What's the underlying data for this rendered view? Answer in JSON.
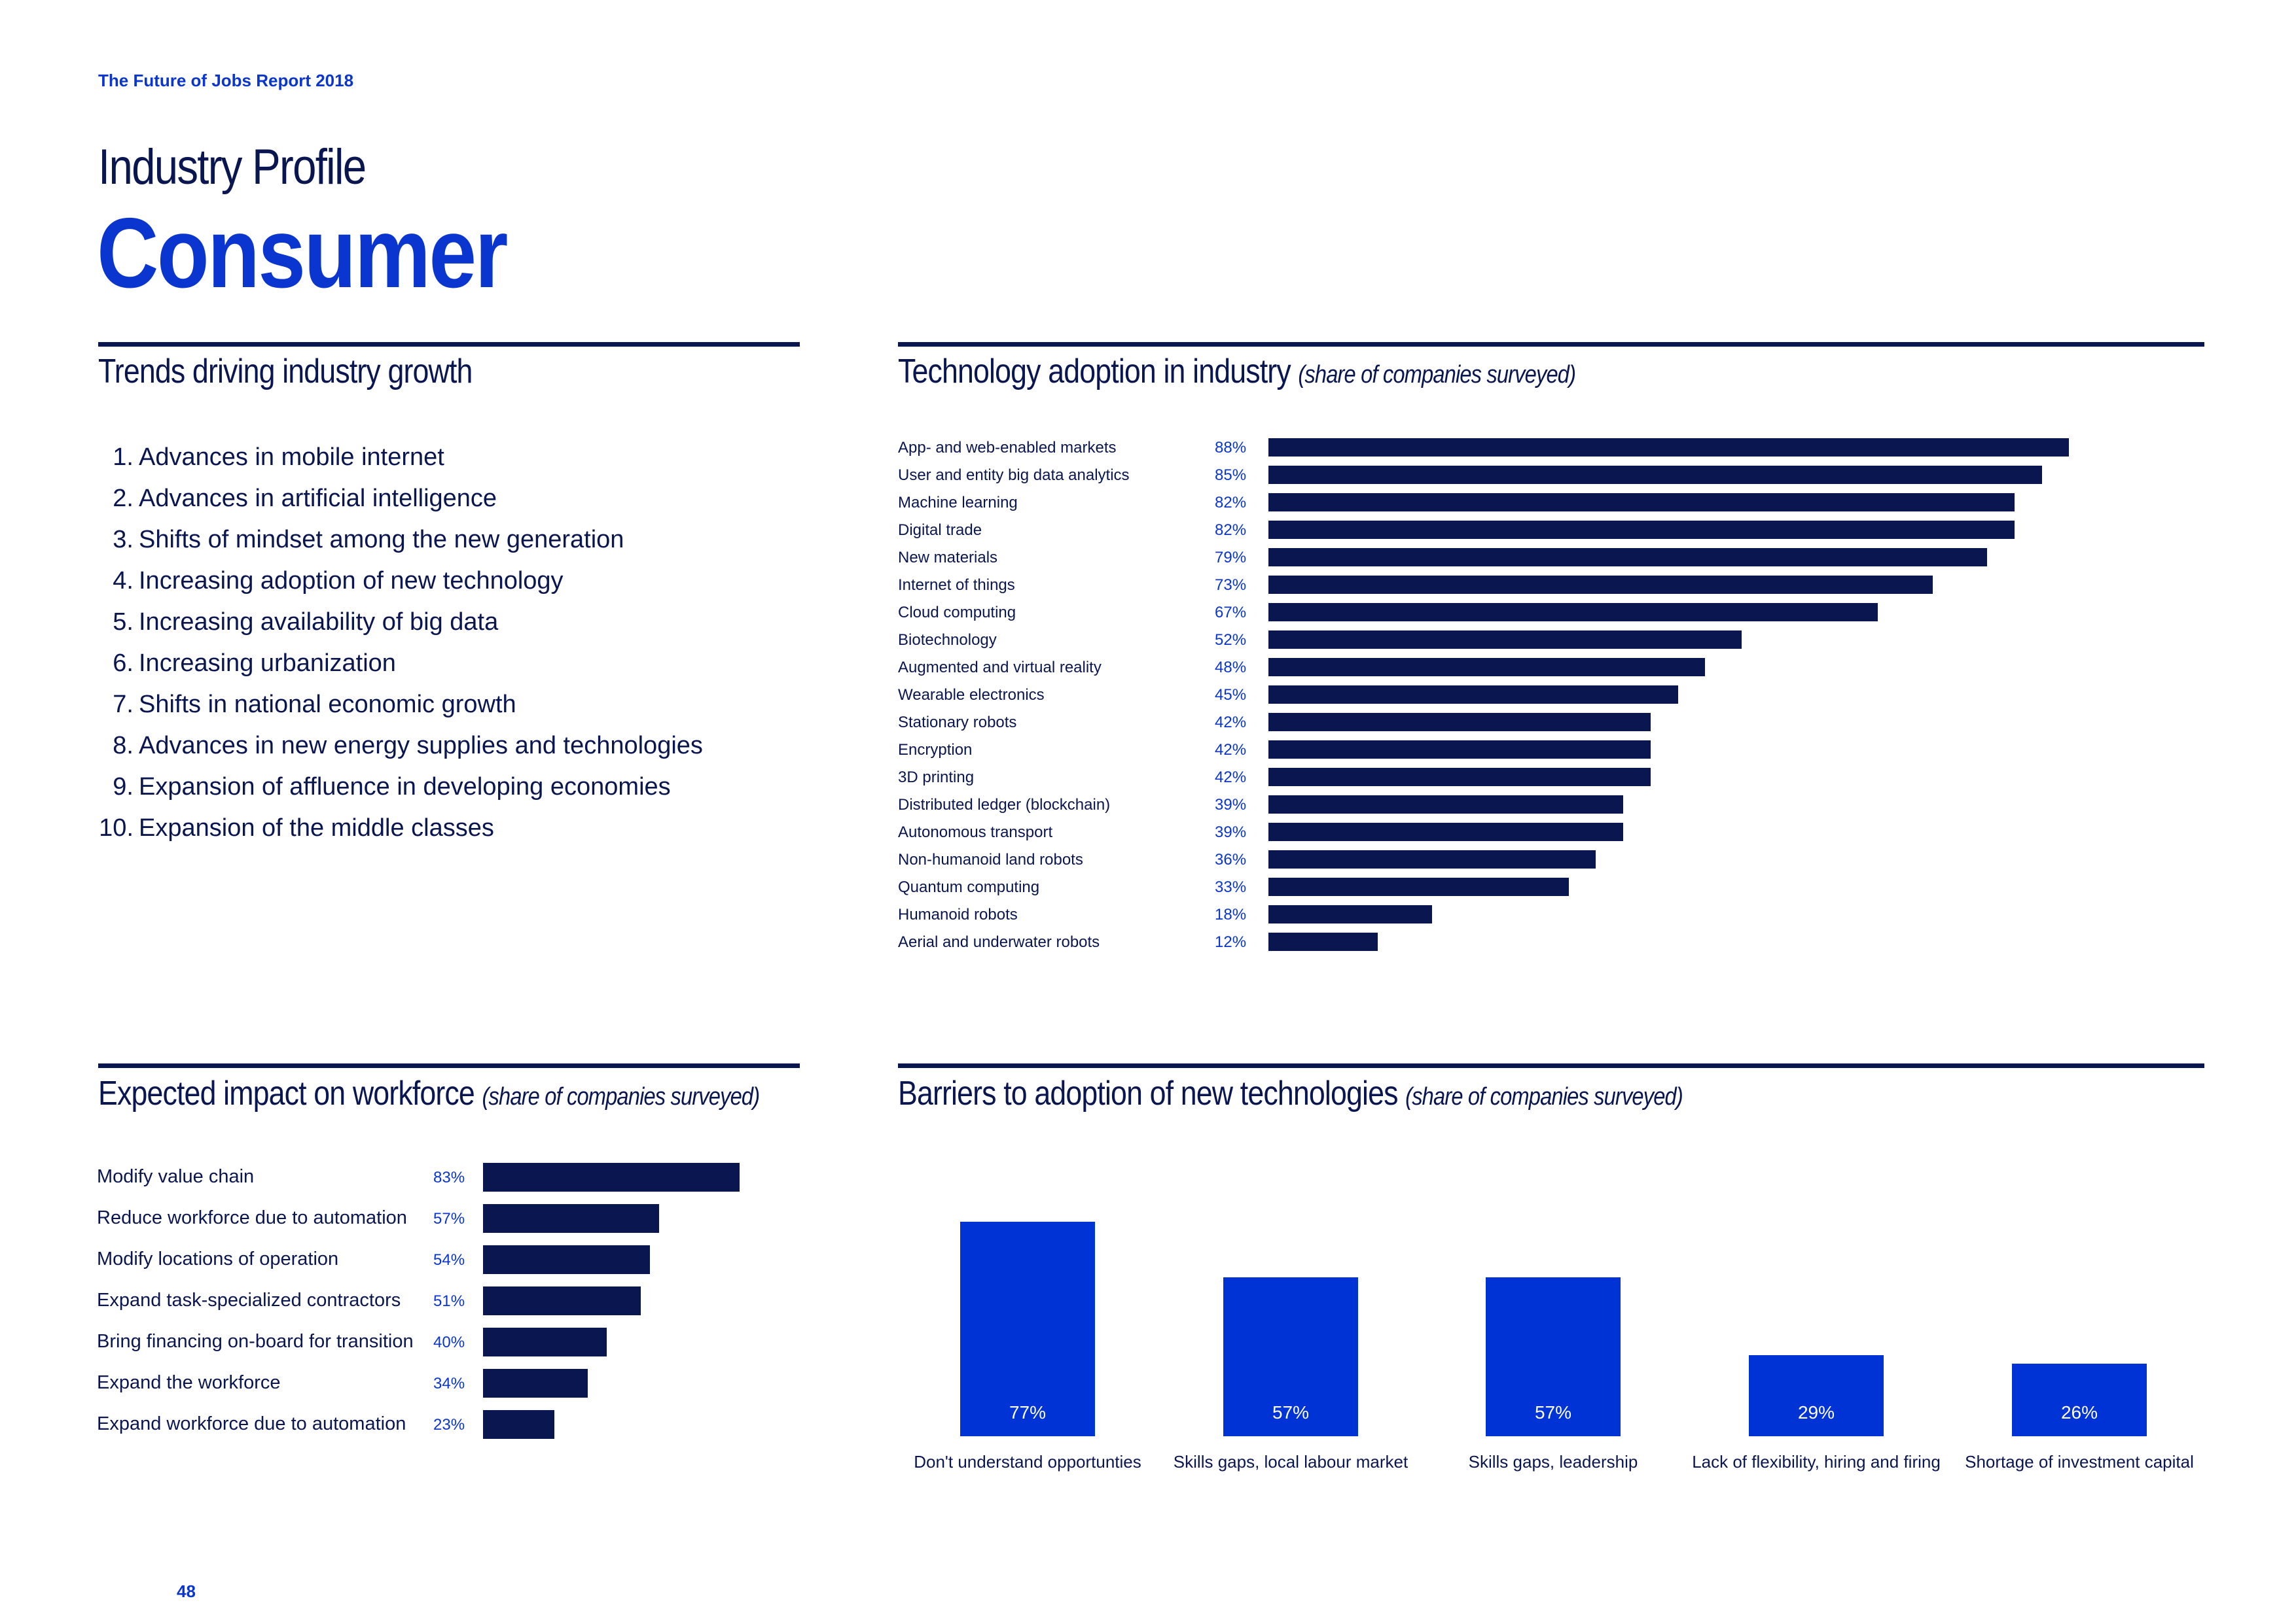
{
  "header": {
    "report_title": "The Future of Jobs Report 2018",
    "kicker": "Industry Profile",
    "headline": "Consumer"
  },
  "trends": {
    "title": "Trends driving industry growth",
    "items": [
      {
        "num": "1.",
        "text": "Advances in mobile internet"
      },
      {
        "num": "2.",
        "text": "Advances in artificial intelligence"
      },
      {
        "num": "3.",
        "text": "Shifts of mindset among the new generation"
      },
      {
        "num": "4.",
        "text": "Increasing adoption of new technology"
      },
      {
        "num": "5.",
        "text": "Increasing availability of big data"
      },
      {
        "num": "6.",
        "text": "Increasing urbanization"
      },
      {
        "num": "7.",
        "text": "Shifts in national economic growth"
      },
      {
        "num": "8.",
        "text": "Advances in new energy supplies and technologies"
      },
      {
        "num": "9.",
        "text": "Expansion of affluence in developing economies"
      },
      {
        "num": "10.",
        "text": "Expansion of the middle classes"
      }
    ]
  },
  "tech_adoption": {
    "title": "Technology adoption in industry",
    "subtitle": "(share of companies surveyed)"
  },
  "workforce": {
    "title": "Expected impact on workforce",
    "subtitle": "(share of companies surveyed)"
  },
  "barriers": {
    "title": "Barriers to adoption of new technologies",
    "subtitle": "(share of companies surveyed)"
  },
  "page_number": "48",
  "colors": {
    "navy": "#0a1650",
    "blue": "#0b35cf",
    "bar_blue": "#0033d6"
  },
  "chart_data": [
    {
      "type": "bar",
      "orientation": "horizontal",
      "title": "Technology adoption in industry",
      "subtitle": "(share of companies surveyed)",
      "categories": [
        "App- and web-enabled markets",
        "User and entity big data analytics",
        "Machine learning",
        "Digital trade",
        "New materials",
        "Internet of things",
        "Cloud computing",
        "Biotechnology",
        "Augmented and virtual reality",
        "Wearable electronics",
        "Stationary robots",
        "Encryption",
        "3D printing",
        "Distributed ledger (blockchain)",
        "Autonomous transport",
        "Non-humanoid land robots",
        "Quantum computing",
        "Humanoid robots",
        "Aerial and underwater robots"
      ],
      "values": [
        88,
        85,
        82,
        82,
        79,
        73,
        67,
        52,
        48,
        45,
        42,
        42,
        42,
        39,
        39,
        36,
        33,
        18,
        12
      ],
      "labels": [
        "88%",
        "85%",
        "82%",
        "82%",
        "79%",
        "73%",
        "67%",
        "52%",
        "48%",
        "45%",
        "42%",
        "42%",
        "42%",
        "39%",
        "39%",
        "36%",
        "33%",
        "18%",
        "12%"
      ],
      "xlim": [
        0,
        100
      ]
    },
    {
      "type": "bar",
      "orientation": "horizontal",
      "title": "Expected impact on workforce",
      "subtitle": "(share of companies surveyed)",
      "categories": [
        "Modify value chain",
        "Reduce workforce due to automation",
        "Modify locations of operation",
        "Expand task-specialized contractors",
        "Bring financing on-board for transition",
        "Expand the workforce",
        "Expand workforce due to automation"
      ],
      "values": [
        83,
        57,
        54,
        51,
        40,
        34,
        23
      ],
      "labels": [
        "83%",
        "57%",
        "54%",
        "51%",
        "40%",
        "34%",
        "23%"
      ],
      "xlim": [
        0,
        100
      ]
    },
    {
      "type": "bar",
      "orientation": "vertical",
      "title": "Barriers to adoption of new technologies",
      "subtitle": "(share of companies surveyed)",
      "categories": [
        "Don't understand opportunties",
        "Skills gaps, local labour market",
        "Skills gaps, leadership",
        "Lack of flexibility, hiring and firing",
        "Shortage of investment capital"
      ],
      "values": [
        77,
        57,
        57,
        29,
        26
      ],
      "labels": [
        "77%",
        "57%",
        "57%",
        "29%",
        "26%"
      ],
      "ylim": [
        0,
        100
      ]
    }
  ]
}
